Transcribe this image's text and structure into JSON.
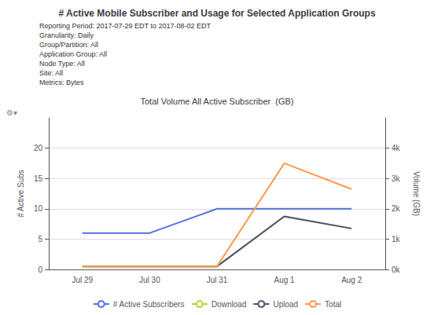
{
  "chart_data": {
    "type": "line",
    "title": "# Active Mobile Subscriber and Usage for Selected Application Groups",
    "subtitle": "Total Volume All Active Subscriber  (GB)",
    "annotations": [
      "Reporting Period: 2017-07-29 EDT to 2017-08-02 EDT",
      "Granularity: Daily",
      "Group/Partition: All",
      "Application Group: All",
      "Node Type: All",
      "Site: All",
      "Metrics: Bytes",
      "⚙▾"
    ],
    "categories": [
      "Jul 29",
      "Jul 30",
      "Jul 31",
      "Aug 1",
      "Aug 2"
    ],
    "series": [
      {
        "name": "# Active Subscribers",
        "values": [
          6,
          6,
          10,
          10,
          10
        ]
      },
      {
        "name": "Download",
        "values": [
          100,
          100,
          100,
          1750,
          1350
        ],
        "axis": "y2"
      },
      {
        "name": "Upload",
        "values": [
          100,
          100,
          100,
          1750,
          1350
        ],
        "axis": "y2"
      },
      {
        "name": "Total",
        "values": [
          100,
          100,
          100,
          3500,
          2650
        ],
        "axis": "y2"
      }
    ],
    "ylabel": "# Active Subs",
    "y2label": "Volume (GB)",
    "ylim": [
      0,
      25
    ],
    "yticks": [
      0,
      5,
      10,
      15,
      20
    ],
    "y2lim": [
      0,
      5000
    ],
    "y2ticks": [
      {
        "value": 0,
        "label": "0k"
      },
      {
        "value": 1000,
        "label": "1k"
      },
      {
        "value": 2000,
        "label": "2k"
      },
      {
        "value": 3000,
        "label": "3k"
      },
      {
        "value": 4000,
        "label": "4k"
      }
    ],
    "grid": true,
    "legend": "bottom"
  }
}
